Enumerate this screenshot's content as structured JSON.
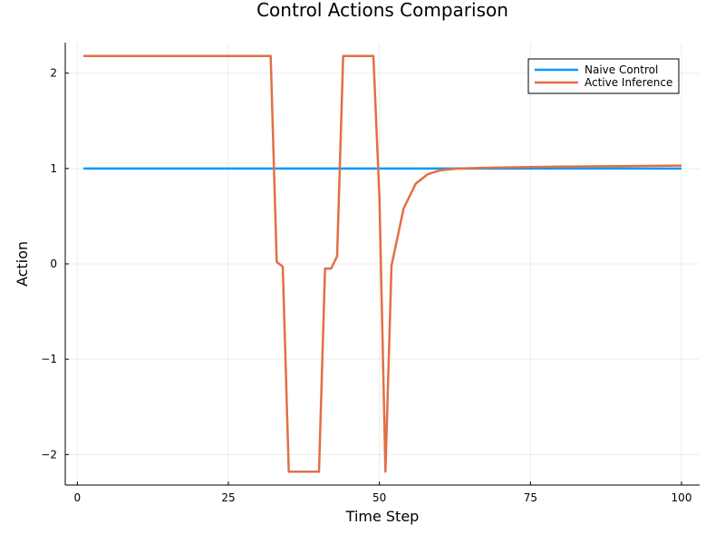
{
  "chart_data": {
    "type": "line",
    "title": "Control Actions Comparison",
    "xlabel": "Time Step",
    "ylabel": "Action",
    "xlim": [
      -2,
      103
    ],
    "ylim": [
      -2.32,
      2.32
    ],
    "xticks": [
      0,
      25,
      50,
      75,
      100
    ],
    "yticks": [
      -2,
      -1,
      0,
      1,
      2
    ],
    "xtick_labels": [
      "0",
      "25",
      "50",
      "75",
      "100"
    ],
    "ytick_labels": [
      "−2",
      "−1",
      "0",
      "1",
      "2"
    ],
    "grid": true,
    "legend_position": "top-right",
    "series": [
      {
        "name": "Naive Control",
        "color": "#009af9",
        "x": [
          1,
          100
        ],
        "y": [
          1.0,
          1.0
        ]
      },
      {
        "name": "Active Inference",
        "color": "#e26f46",
        "x": [
          1,
          32,
          33,
          34,
          35,
          40,
          41,
          42,
          43,
          44,
          49,
          50,
          51,
          52,
          54,
          56,
          58,
          60,
          63,
          70,
          80,
          90,
          100
        ],
        "y": [
          2.18,
          2.18,
          0.02,
          -0.03,
          -2.18,
          -2.18,
          -0.05,
          -0.05,
          0.08,
          2.18,
          2.18,
          0.7,
          -2.18,
          -0.02,
          0.58,
          0.84,
          0.94,
          0.98,
          1.0,
          1.01,
          1.02,
          1.025,
          1.03
        ]
      }
    ]
  }
}
